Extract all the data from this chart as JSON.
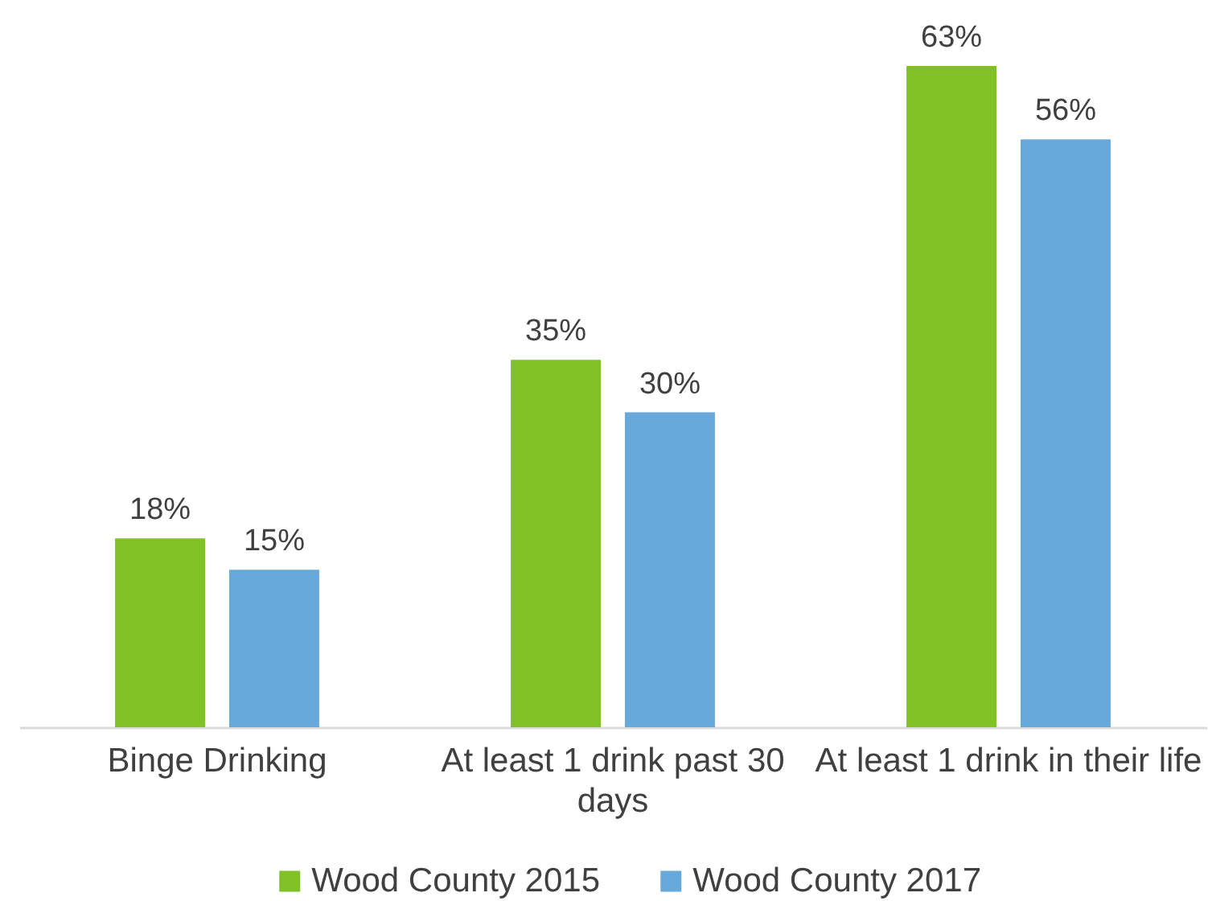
{
  "chart_data": {
    "type": "bar",
    "categories": [
      "Binge Drinking",
      "At least 1 drink past 30 days",
      "At least 1 drink in their life"
    ],
    "series": [
      {
        "name": "Wood County 2015",
        "color": "#7fc127",
        "values": [
          18,
          35,
          63
        ],
        "value_labels": [
          "18%",
          "35%",
          "63%"
        ]
      },
      {
        "name": "Wood County 2017",
        "color": "#67a9db",
        "values": [
          15,
          30,
          56
        ],
        "value_labels": [
          "15%",
          "30%",
          "56%"
        ]
      }
    ],
    "legend": "bottom",
    "grid": false
  }
}
